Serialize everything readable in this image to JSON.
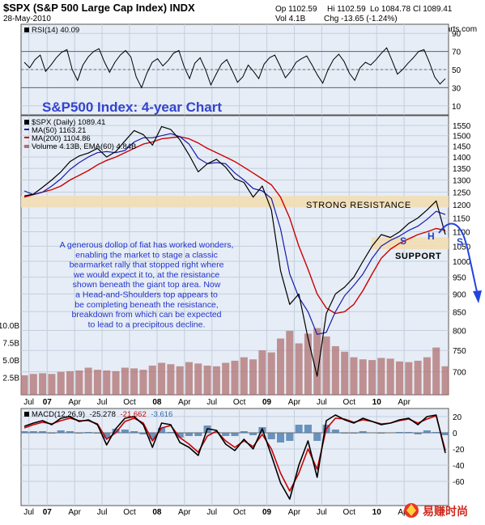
{
  "chart_data": [
    {
      "type": "line",
      "panel": "rsi",
      "legend": "RSI(14) 40.09",
      "ylim": [
        0,
        100
      ],
      "y_ticks": [
        10,
        30,
        50,
        70,
        90
      ],
      "levels": [
        30,
        70
      ],
      "color": "#000000",
      "series": [
        {
          "name": "RSI(14)",
          "values": [
            58,
            52,
            61,
            66,
            48,
            55,
            63,
            69,
            72,
            50,
            38,
            55,
            64,
            70,
            73,
            59,
            47,
            58,
            66,
            71,
            64,
            42,
            30,
            46,
            58,
            62,
            54,
            60,
            68,
            71,
            53,
            40,
            57,
            63,
            50,
            33,
            45,
            56,
            61,
            49,
            36,
            42,
            55,
            48,
            40,
            56,
            63,
            66,
            54,
            41,
            48,
            58,
            62,
            65,
            55,
            44,
            35,
            50,
            61,
            67,
            59,
            46,
            38,
            52,
            58,
            55,
            61,
            68,
            74,
            60,
            45,
            50,
            57,
            63,
            70,
            72,
            58,
            42,
            34,
            40
          ]
        }
      ]
    },
    {
      "type": "line",
      "panel": "price",
      "title": "$SPX (S&P 500 Large Cap Index) INDX",
      "date": "28-May-2010",
      "header": {
        "op": "Op 1102.59",
        "hi": "Hi 1102.59",
        "lo": "Lo 1084.78",
        "cl": "Cl 1089.41",
        "vol": "Vol 4.1B",
        "chg": "Chg -13.65 (-1.24%)"
      },
      "watermark": "@ StockCharts.com",
      "ylim": [
        650,
        1600
      ],
      "log_scale": true,
      "y_ticks": [
        700,
        750,
        800,
        850,
        900,
        950,
        1000,
        1050,
        1100,
        1150,
        1200,
        1250,
        1300,
        1350,
        1400,
        1450,
        1500,
        1550
      ],
      "volume_ticks": [
        "2.5B",
        "5.0B",
        "7.5B",
        "10.0B"
      ],
      "x_ticks": [
        "Jul",
        "07",
        "Apr",
        "Jul",
        "Oct",
        "08",
        "Apr",
        "Jul",
        "Oct",
        "09",
        "Apr",
        "Jul",
        "Oct",
        "10",
        "Apr"
      ],
      "x_tick_pos": [
        0.5,
        2.5,
        5.5,
        8.5,
        11.5,
        14.5,
        17.5,
        20.5,
        23.5,
        26.5,
        29.5,
        32.5,
        35.5,
        38.5,
        41.5
      ],
      "x_count": 47,
      "legend": [
        "$SPX (Daily) 1089.41",
        "MA(50) 1163.21",
        "MA(200) 1104.86",
        "Volume 4.13B, EMA(60) 4.84B"
      ],
      "series": [
        {
          "name": "$SPX (Daily)",
          "color": "#000000",
          "values": [
            1235,
            1242,
            1270,
            1300,
            1335,
            1380,
            1405,
            1418,
            1440,
            1400,
            1425,
            1475,
            1525,
            1505,
            1455,
            1545,
            1530,
            1480,
            1410,
            1335,
            1370,
            1390,
            1355,
            1305,
            1290,
            1230,
            1275,
            1180,
            970,
            870,
            900,
            780,
            690,
            845,
            900,
            920,
            950,
            1000,
            1050,
            1090,
            1080,
            1100,
            1130,
            1150,
            1180,
            1215,
            1090
          ]
        },
        {
          "name": "MA(50)",
          "color": "#1a1aaa",
          "values": [
            1255,
            1240,
            1250,
            1275,
            1305,
            1345,
            1375,
            1400,
            1420,
            1425,
            1420,
            1430,
            1470,
            1490,
            1490,
            1500,
            1510,
            1495,
            1460,
            1395,
            1370,
            1375,
            1370,
            1330,
            1300,
            1265,
            1255,
            1225,
            1110,
            960,
            890,
            850,
            790,
            795,
            850,
            895,
            925,
            960,
            1010,
            1050,
            1070,
            1085,
            1105,
            1120,
            1145,
            1175,
            1163
          ]
        },
        {
          "name": "MA(200)",
          "color": "#cc0000",
          "values": [
            1230,
            1240,
            1250,
            1260,
            1275,
            1300,
            1320,
            1340,
            1365,
            1385,
            1400,
            1420,
            1440,
            1460,
            1470,
            1485,
            1490,
            1495,
            1485,
            1465,
            1440,
            1420,
            1400,
            1380,
            1355,
            1330,
            1305,
            1280,
            1230,
            1150,
            1050,
            975,
            900,
            860,
            845,
            850,
            870,
            910,
            960,
            1010,
            1040,
            1060,
            1075,
            1090,
            1100,
            1112,
            1105
          ]
        },
        {
          "name": "Volume",
          "color": "#b07070",
          "values": [
            2.8,
            3.0,
            3.1,
            3.0,
            3.3,
            3.4,
            3.5,
            3.9,
            3.6,
            3.5,
            3.4,
            3.9,
            3.8,
            3.6,
            4.2,
            4.6,
            4.4,
            4.1,
            4.7,
            4.5,
            4.2,
            4.1,
            4.6,
            4.9,
            5.4,
            5.1,
            6.4,
            6.1,
            8.1,
            9.2,
            7.4,
            8.8,
            9.6,
            8.4,
            7.0,
            6.2,
            5.4,
            5.1,
            5.0,
            5.3,
            5.2,
            4.8,
            4.7,
            4.9,
            5.4,
            6.8,
            4.1
          ]
        }
      ],
      "bands": [
        {
          "label": "STRONG RESISTANCE",
          "from": 1190,
          "to": 1235,
          "color": "#f2ddb4"
        },
        {
          "label": "SUPPORT",
          "from": 1040,
          "to": 1080,
          "color": "#f2ddb4"
        }
      ],
      "chart_title": "S&P500 Index: 4-year Chart",
      "hs_labels": [
        "S",
        "H",
        "S"
      ],
      "annotation": [
        "A generous dollop of fiat has worked wonders,",
        "enabling the market to stage a classic",
        "bearmarket rally that stopped right where",
        "we would expect it to, at the resistance",
        "shown beneath the giant top area. Now",
        "a Head-and-Shoulders top appears to",
        "be completing beneath the resistance,",
        "breakdown from which can be expected",
        "to lead to a precipitous decline."
      ]
    },
    {
      "type": "line",
      "panel": "macd",
      "legend": {
        "name": "MACD(12,26,9)",
        "macd": "-25.278",
        "signal": "-21.662",
        "hist": "-3.616"
      },
      "ylim": [
        -90,
        30
      ],
      "y_ticks": [
        20,
        0,
        -20,
        -40,
        -60
      ],
      "x_ticks": [
        "Jul",
        "07",
        "Apr",
        "Jul",
        "Oct",
        "08",
        "Apr",
        "Jul",
        "Oct",
        "09",
        "Apr",
        "Jul",
        "Oct",
        "10",
        "Apr"
      ],
      "series": [
        {
          "name": "MACD",
          "color": "#000000",
          "values": [
            8,
            12,
            15,
            10,
            18,
            20,
            14,
            16,
            10,
            -15,
            5,
            18,
            20,
            10,
            -18,
            12,
            10,
            -12,
            -18,
            -28,
            5,
            3,
            -14,
            -22,
            -8,
            -20,
            5,
            -28,
            -62,
            -82,
            -40,
            -10,
            -55,
            15,
            22,
            16,
            12,
            18,
            14,
            10,
            12,
            16,
            18,
            10,
            20,
            22,
            -25
          ]
        },
        {
          "name": "Signal",
          "color": "#cc0000",
          "values": [
            6,
            10,
            13,
            11,
            15,
            18,
            15,
            15,
            11,
            -8,
            0,
            14,
            18,
            12,
            -10,
            6,
            9,
            -6,
            -14,
            -24,
            -4,
            2,
            -10,
            -18,
            -10,
            -17,
            -2,
            -20,
            -50,
            -72,
            -50,
            -20,
            -45,
            5,
            18,
            17,
            13,
            16,
            14,
            11,
            12,
            15,
            17,
            12,
            17,
            21,
            -22
          ]
        },
        {
          "name": "Histogram",
          "color": "#4a7ab0",
          "values": [
            2,
            2,
            2,
            -1,
            3,
            2,
            -1,
            1,
            -1,
            -7,
            5,
            4,
            2,
            -2,
            -8,
            6,
            1,
            -6,
            -4,
            -4,
            9,
            1,
            -4,
            -4,
            2,
            -3,
            7,
            -8,
            -12,
            -10,
            10,
            10,
            -10,
            10,
            4,
            -1,
            -1,
            2,
            0,
            -1,
            0,
            1,
            1,
            -2,
            3,
            1,
            -3
          ]
        }
      ]
    }
  ],
  "footer_logo": "易赚时尚"
}
